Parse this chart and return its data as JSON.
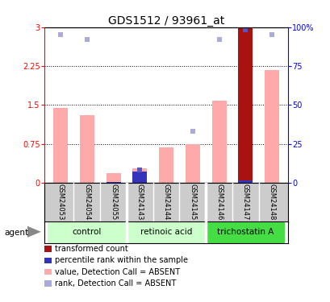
{
  "title": "GDS1512 / 93961_at",
  "samples": [
    "GSM24053",
    "GSM24054",
    "GSM24055",
    "GSM24143",
    "GSM24144",
    "GSM24145",
    "GSM24146",
    "GSM24147",
    "GSM24148"
  ],
  "bar_values": [
    1.45,
    1.3,
    0.18,
    0.28,
    0.68,
    0.75,
    1.58,
    2.98,
    2.18
  ],
  "bar_colors": [
    "#ffaaaa",
    "#ffaaaa",
    "#ffaaaa",
    "#ffaaaa",
    "#ffaaaa",
    "#ffaaaa",
    "#ffaaaa",
    "#aa1111",
    "#ffaaaa"
  ],
  "rank_dots": [
    2.85,
    2.77,
    null,
    0.25,
    null,
    1.0,
    2.77,
    2.95,
    2.85
  ],
  "rank_dot_colors": [
    "#aaaadd",
    "#aaaadd",
    null,
    "#5555bb",
    null,
    "#aaaadd",
    "#aaaadd",
    "#5555bb",
    "#aaaadd"
  ],
  "blue_bar_values": [
    null,
    null,
    0.02,
    0.22,
    null,
    null,
    null,
    0.05,
    null
  ],
  "groups": [
    {
      "label": "control",
      "start": 0,
      "end": 3,
      "color": "#ccffcc"
    },
    {
      "label": "retinoic acid",
      "start": 3,
      "end": 6,
      "color": "#ccffcc"
    },
    {
      "label": "trichostatin A",
      "start": 6,
      "end": 9,
      "color": "#44dd44"
    }
  ],
  "ylim": [
    0,
    3.0
  ],
  "yticks": [
    0,
    0.75,
    1.5,
    2.25,
    3.0
  ],
  "ytick_labels": [
    "0",
    "0.75",
    "1.5",
    "2.25",
    "3"
  ],
  "y2ticks": [
    0,
    0.25,
    0.5,
    0.75,
    1.0
  ],
  "y2tick_labels": [
    "0",
    "25",
    "50",
    "75",
    "100%"
  ],
  "agent_label": "agent",
  "legend_items": [
    {
      "color": "#aa1111",
      "label": "transformed count"
    },
    {
      "color": "#3333bb",
      "label": "percentile rank within the sample"
    },
    {
      "color": "#ffaaaa",
      "label": "value, Detection Call = ABSENT"
    },
    {
      "color": "#aaaadd",
      "label": "rank, Detection Call = ABSENT"
    }
  ],
  "background_color": "#ffffff",
  "sample_bg_color": "#cccccc",
  "title_fontsize": 10,
  "tick_fontsize": 7,
  "legend_fontsize": 7
}
